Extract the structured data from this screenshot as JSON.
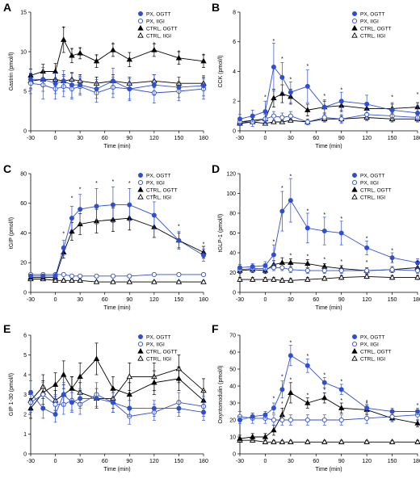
{
  "colors": {
    "blue": "#2f4fd1",
    "black": "#000000"
  },
  "legend": [
    {
      "label": "PX, OGTT",
      "color": "blue",
      "marker": "filled-circle"
    },
    {
      "label": "PX, IIGI",
      "color": "blue",
      "marker": "open-circle"
    },
    {
      "label": "CTRL, OGTT",
      "color": "black",
      "marker": "filled-triangle"
    },
    {
      "label": "CTRL, IIGI",
      "color": "black",
      "marker": "open-triangle"
    }
  ],
  "chart_data": [
    {
      "type": "line",
      "letter": "A",
      "ylabel": "Gastrin (pmol/l)",
      "xlabel": "Time (min)",
      "x": [
        -30,
        -15,
        0,
        10,
        20,
        30,
        50,
        70,
        90,
        120,
        150,
        180
      ],
      "xticks": [
        -30,
        0,
        30,
        60,
        90,
        120,
        150,
        180
      ],
      "ylim": [
        0,
        15
      ],
      "yticks": [
        0,
        5,
        10,
        15
      ],
      "legend_position": "top-right",
      "series": [
        {
          "name": "PX, OGTT",
          "values": [
            6.5,
            6.5,
            6.0,
            6.3,
            5.8,
            5.8,
            5.3,
            6.3,
            5.3,
            5.8,
            5.5,
            5.7
          ],
          "errors": [
            1.3,
            1.5,
            1.3,
            1.3,
            1.6,
            1.1,
            1.2,
            1.6,
            1.5,
            1.3,
            1.3,
            1.3
          ]
        },
        {
          "name": "PX, IIGI",
          "values": [
            6.0,
            5.8,
            5.3,
            5.6,
            5.3,
            5.6,
            4.8,
            5.5,
            5.3,
            4.8,
            5.0,
            5.3
          ],
          "errors": [
            1.3,
            1.8,
            1.3,
            1.3,
            1.3,
            1.1,
            1.2,
            1.3,
            1.3,
            1.3,
            1.2,
            1.3
          ]
        },
        {
          "name": "CTRL, OGTT",
          "values": [
            7.0,
            7.5,
            7.5,
            11.5,
            9.5,
            9.8,
            8.8,
            10.2,
            9.0,
            10.2,
            9.2,
            8.8
          ],
          "errors": [
            0.8,
            0.9,
            1.0,
            1.6,
            0.9,
            0.7,
            0.8,
            0.8,
            0.9,
            0.8,
            0.8,
            0.8
          ]
        },
        {
          "name": "CTRL, IIGI",
          "values": [
            6.3,
            6.5,
            6.5,
            6.3,
            6.5,
            6.3,
            6.0,
            6.3,
            6.0,
            6.3,
            6.0,
            6.0
          ],
          "errors": [
            0.9,
            0.9,
            0.8,
            0.8,
            0.8,
            0.8,
            0.8,
            0.8,
            0.8,
            0.8,
            0.8,
            0.8
          ]
        }
      ],
      "stars": [
        [
          10,
          13.0
        ],
        [
          20,
          10.3
        ],
        [
          30,
          10.4
        ],
        [
          50,
          9.5
        ],
        [
          70,
          11.0
        ],
        [
          120,
          11.0
        ],
        [
          150,
          10.0
        ],
        [
          180,
          9.6
        ]
      ]
    },
    {
      "type": "line",
      "letter": "B",
      "ylabel": "CCK (pmol/l)",
      "xlabel": "Time (min)",
      "x": [
        -30,
        -15,
        0,
        10,
        20,
        30,
        50,
        70,
        90,
        120,
        150,
        180
      ],
      "xticks": [
        -30,
        0,
        30,
        60,
        90,
        120,
        150,
        180
      ],
      "ylim": [
        0,
        8
      ],
      "yticks": [
        0,
        2,
        4,
        6,
        8
      ],
      "legend_position": "top-right",
      "series": [
        {
          "name": "PX, OGTT",
          "values": [
            0.8,
            1.0,
            1.3,
            4.3,
            3.6,
            2.6,
            3.0,
            1.6,
            2.0,
            1.8,
            1.4,
            1.2
          ],
          "errors": [
            0.3,
            0.4,
            0.7,
            1.6,
            1.0,
            0.7,
            1.1,
            0.5,
            0.6,
            0.6,
            0.5,
            0.5
          ]
        },
        {
          "name": "PX, IIGI",
          "values": [
            0.6,
            0.6,
            0.8,
            1.0,
            0.9,
            1.0,
            0.6,
            0.9,
            0.8,
            1.1,
            1.0,
            0.9
          ],
          "errors": [
            0.2,
            0.3,
            0.3,
            0.3,
            0.3,
            0.3,
            0.2,
            0.3,
            0.3,
            0.3,
            0.3,
            0.3
          ]
        },
        {
          "name": "CTRL, OGTT",
          "values": [
            0.6,
            0.7,
            0.8,
            2.2,
            2.5,
            2.3,
            1.4,
            1.6,
            1.7,
            1.5,
            1.5,
            1.6
          ],
          "errors": [
            0.2,
            0.2,
            0.3,
            0.6,
            0.6,
            0.5,
            0.4,
            0.4,
            0.4,
            0.4,
            0.3,
            0.3
          ]
        },
        {
          "name": "CTRL, IIGI",
          "values": [
            0.5,
            0.6,
            0.5,
            0.6,
            0.6,
            0.7,
            0.6,
            0.8,
            0.8,
            0.9,
            0.8,
            0.8
          ],
          "errors": [
            0.1,
            0.1,
            0.1,
            0.1,
            0.1,
            0.1,
            0.1,
            0.2,
            0.2,
            0.2,
            0.2,
            0.2
          ]
        }
      ],
      "stars": [
        [
          0,
          2.3
        ],
        [
          10,
          6.1
        ],
        [
          20,
          4.9
        ],
        [
          30,
          3.5
        ],
        [
          50,
          4.4
        ],
        [
          70,
          2.4
        ],
        [
          90,
          2.8
        ],
        [
          150,
          2.3
        ],
        [
          180,
          2.5
        ]
      ]
    },
    {
      "type": "line",
      "letter": "C",
      "ylabel": "tGIP (pmol/l)",
      "xlabel": "Time (min)",
      "x": [
        -30,
        -15,
        0,
        10,
        20,
        30,
        50,
        70,
        90,
        120,
        150,
        180
      ],
      "xticks": [
        -30,
        0,
        30,
        60,
        90,
        120,
        150,
        180
      ],
      "ylim": [
        0,
        80
      ],
      "yticks": [
        0,
        20,
        40,
        60,
        80
      ],
      "legend_position": "top-right",
      "series": [
        {
          "name": "PX, OGTT",
          "values": [
            11,
            11,
            11,
            30,
            50,
            56,
            58,
            59,
            59,
            52,
            35,
            25
          ],
          "errors": [
            1,
            1,
            2,
            5,
            8,
            10,
            12,
            12,
            11,
            9,
            6,
            4
          ]
        },
        {
          "name": "PX, IIGI",
          "values": [
            12,
            12,
            12,
            12,
            11,
            11,
            11,
            11,
            11,
            12,
            12,
            12
          ],
          "errors": [
            1,
            1,
            1,
            1,
            1,
            1,
            1,
            1,
            1,
            1,
            1,
            1
          ]
        },
        {
          "name": "CTRL, OGTT",
          "values": [
            10,
            10,
            10,
            27,
            41,
            46,
            48,
            49,
            50,
            44,
            35,
            27
          ],
          "errors": [
            1,
            1,
            1,
            4,
            6,
            7,
            8,
            8,
            8,
            7,
            5,
            4
          ]
        },
        {
          "name": "CTRL, IIGI",
          "values": [
            9,
            9,
            8,
            8,
            8,
            8,
            7,
            7,
            7,
            7,
            7,
            7
          ],
          "errors": [
            1,
            1,
            1,
            1,
            1,
            1,
            1,
            1,
            1,
            1,
            1,
            1
          ]
        }
      ],
      "stars": [
        [
          10,
          40
        ],
        [
          20,
          64
        ],
        [
          30,
          70
        ],
        [
          50,
          74
        ],
        [
          70,
          75
        ],
        [
          90,
          74
        ],
        [
          120,
          65
        ],
        [
          150,
          45
        ],
        [
          180,
          33
        ]
      ]
    },
    {
      "type": "line",
      "letter": "D",
      "ylabel": "tGLP-1 (pmol/l)",
      "xlabel": "Time (min)",
      "x": [
        -30,
        -15,
        0,
        10,
        20,
        30,
        50,
        70,
        90,
        120,
        150,
        180
      ],
      "xticks": [
        -30,
        0,
        30,
        60,
        90,
        120,
        150,
        180
      ],
      "ylim": [
        0,
        120
      ],
      "yticks": [
        0,
        20,
        40,
        60,
        80,
        100,
        120
      ],
      "legend_position": "top-right",
      "series": [
        {
          "name": "PX, OGTT",
          "values": [
            25,
            26,
            27,
            38,
            82,
            93,
            65,
            62,
            60,
            45,
            35,
            30
          ],
          "errors": [
            3,
            3,
            4,
            10,
            20,
            22,
            15,
            14,
            12,
            7,
            5,
            4
          ]
        },
        {
          "name": "PX, IIGI",
          "values": [
            23,
            24,
            24,
            25,
            25,
            23,
            22,
            22,
            22,
            22,
            23,
            22
          ],
          "errors": [
            3,
            3,
            3,
            3,
            3,
            3,
            3,
            3,
            3,
            3,
            3,
            3
          ]
        },
        {
          "name": "CTRL, OGTT",
          "values": [
            22,
            23,
            22,
            28,
            30,
            30,
            29,
            26,
            24,
            22,
            23,
            25
          ],
          "errors": [
            3,
            3,
            3,
            4,
            5,
            4,
            4,
            3,
            3,
            3,
            3,
            3
          ]
        },
        {
          "name": "CTRL, IIGI",
          "values": [
            13,
            13,
            13,
            13,
            12,
            12,
            13,
            14,
            15,
            16,
            15,
            15
          ],
          "errors": [
            2,
            2,
            2,
            2,
            2,
            2,
            2,
            2,
            2,
            2,
            2,
            2
          ]
        }
      ],
      "stars": [
        [
          10,
          52
        ],
        [
          20,
          106
        ],
        [
          30,
          118
        ],
        [
          50,
          83
        ],
        [
          70,
          79
        ],
        [
          90,
          75
        ],
        [
          120,
          55
        ],
        [
          150,
          43
        ],
        [
          30,
          38
        ],
        [
          50,
          37
        ],
        [
          70,
          34
        ],
        [
          90,
          32
        ],
        [
          120,
          31
        ],
        [
          150,
          31
        ],
        [
          180,
          31
        ]
      ]
    },
    {
      "type": "line",
      "letter": "E",
      "ylabel": "GIP 1-30 (pmol/l)",
      "xlabel": "Time (min)",
      "x": [
        -30,
        -15,
        0,
        10,
        20,
        30,
        50,
        70,
        90,
        120,
        150,
        180
      ],
      "xticks": [
        -30,
        0,
        30,
        60,
        90,
        120,
        150,
        180
      ],
      "ylim": [
        0,
        6
      ],
      "yticks": [
        0,
        1,
        2,
        3,
        4,
        5,
        6
      ],
      "legend_position": "top-right",
      "series": [
        {
          "name": "PX, OGTT",
          "values": [
            3.1,
            2.3,
            2.0,
            3.0,
            2.6,
            2.8,
            2.8,
            2.6,
            2.3,
            2.3,
            2.3,
            2.1
          ],
          "errors": [
            0.6,
            0.5,
            0.4,
            0.6,
            0.5,
            0.5,
            0.5,
            0.5,
            0.4,
            0.4,
            0.4,
            0.4
          ]
        },
        {
          "name": "PX, IIGI",
          "values": [
            2.6,
            3.0,
            2.5,
            2.5,
            2.7,
            2.5,
            3.0,
            2.6,
            1.9,
            2.1,
            2.6,
            2.4
          ],
          "errors": [
            0.5,
            0.6,
            0.5,
            0.5,
            0.5,
            0.5,
            0.6,
            0.5,
            0.4,
            0.4,
            0.5,
            0.5
          ]
        },
        {
          "name": "CTRL, OGTT",
          "values": [
            2.3,
            3.1,
            3.5,
            4.0,
            3.3,
            3.9,
            4.8,
            3.3,
            3.0,
            3.6,
            3.8,
            2.7
          ],
          "errors": [
            0.5,
            0.6,
            0.6,
            0.7,
            0.6,
            0.7,
            0.8,
            0.6,
            0.6,
            0.6,
            0.6,
            0.5
          ]
        },
        {
          "name": "CTRL, IIGI",
          "values": [
            2.7,
            3.4,
            2.7,
            3.0,
            3.3,
            3.1,
            2.8,
            2.8,
            3.9,
            3.9,
            4.3,
            3.2
          ],
          "errors": [
            0.5,
            0.6,
            0.5,
            0.5,
            0.6,
            0.5,
            0.5,
            0.5,
            0.7,
            0.7,
            0.7,
            0.6
          ]
        }
      ],
      "stars": []
    },
    {
      "type": "line",
      "letter": "F",
      "ylabel": "Oxyntomodulin (pmol/l)",
      "xlabel": "Time (min)",
      "x": [
        -30,
        -15,
        0,
        10,
        20,
        30,
        50,
        70,
        90,
        120,
        150,
        180
      ],
      "xticks": [
        -30,
        0,
        30,
        60,
        90,
        120,
        150,
        180
      ],
      "ylim": [
        0,
        70
      ],
      "yticks": [
        0,
        10,
        20,
        30,
        40,
        50,
        60,
        70
      ],
      "legend_position": "top-right",
      "series": [
        {
          "name": "PX, OGTT",
          "values": [
            20,
            22,
            23,
            27,
            38,
            58,
            52,
            42,
            38,
            27,
            25,
            25
          ],
          "errors": [
            2,
            2,
            2,
            3,
            5,
            6,
            4,
            3,
            3,
            2,
            2,
            2
          ]
        },
        {
          "name": "PX, IIGI",
          "values": [
            22,
            21,
            21,
            20,
            20,
            20,
            20,
            20,
            20,
            21,
            22,
            23
          ],
          "errors": [
            3,
            3,
            3,
            3,
            3,
            3,
            3,
            3,
            3,
            3,
            3,
            3
          ]
        },
        {
          "name": "CTRL, OGTT",
          "values": [
            9,
            10,
            10,
            14,
            23,
            36,
            30,
            33,
            27,
            26,
            21,
            18
          ],
          "errors": [
            2,
            2,
            2,
            3,
            4,
            6,
            3,
            3,
            3,
            3,
            2,
            2
          ]
        },
        {
          "name": "CTRL, IIGI",
          "values": [
            8,
            8,
            7,
            7,
            7,
            7,
            7,
            7,
            7,
            7,
            7,
            7
          ],
          "errors": [
            1,
            1,
            1,
            1,
            1,
            1,
            1,
            1,
            1,
            1,
            1,
            1
          ]
        }
      ],
      "stars": [
        [
          10,
          33
        ],
        [
          20,
          46
        ],
        [
          30,
          66
        ],
        [
          50,
          58
        ],
        [
          70,
          47
        ],
        [
          90,
          43
        ],
        [
          120,
          31
        ],
        [
          180,
          29
        ],
        [
          20,
          30
        ],
        [
          30,
          44
        ],
        [
          50,
          35
        ],
        [
          70,
          38
        ],
        [
          90,
          32
        ],
        [
          120,
          30
        ]
      ]
    }
  ]
}
